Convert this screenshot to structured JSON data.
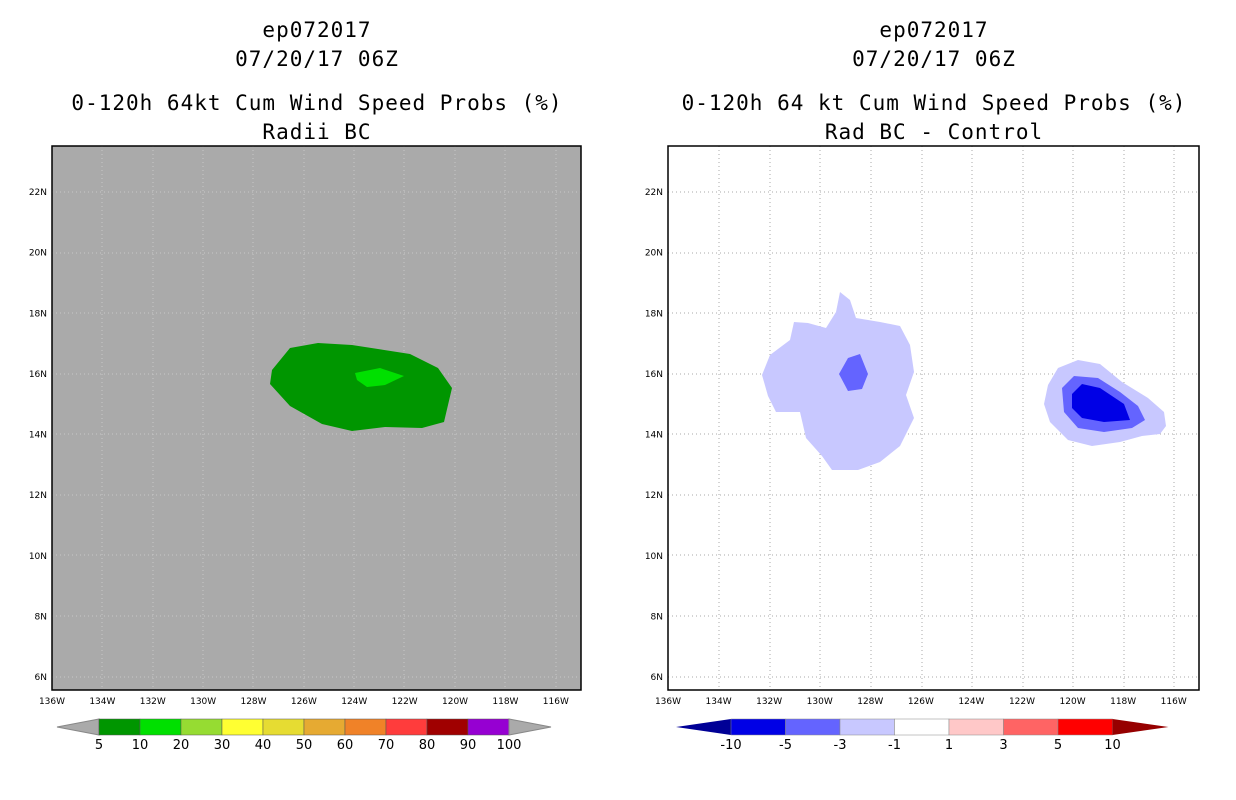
{
  "left": {
    "storm_id": "ep072017",
    "datetime": "07/20/17 06Z",
    "product": "0-120h 64kt Cum Wind Speed Probs (%)",
    "subtitle": "Radii BC",
    "legend_labels": [
      "5",
      "10",
      "20",
      "30",
      "40",
      "50",
      "60",
      "70",
      "80",
      "90",
      "100"
    ],
    "legend_colors": [
      "#009600",
      "#00e000",
      "#96dc32",
      "#ffff32",
      "#e6dc32",
      "#e6aa32",
      "#f08228",
      "#ff3c3c",
      "#a00000",
      "#9600d2"
    ],
    "background_color": "#aaaaaa"
  },
  "right": {
    "storm_id": "ep072017",
    "datetime": "07/20/17 06Z",
    "product": "0-120h 64 kt Cum Wind Speed Probs (%)",
    "subtitle": "Rad BC - Control",
    "legend_labels": [
      "-10",
      "-5",
      "-3",
      "-1",
      "1",
      "3",
      "5",
      "10"
    ],
    "legend_colors": [
      "#0000e6",
      "#6464ff",
      "#c8c8ff",
      "#ffffff",
      "#ffc8c8",
      "#ff6464",
      "#ff0000"
    ],
    "legend_low_color": "#000096",
    "legend_high_color": "#960000"
  },
  "axes": {
    "lon_labels": [
      "136W",
      "134W",
      "132W",
      "130W",
      "128W",
      "126W",
      "124W",
      "122W",
      "120W",
      "118W",
      "116W"
    ],
    "lat_labels": [
      "22N",
      "20N",
      "18N",
      "16N",
      "14N",
      "12N",
      "10N",
      "8N",
      "6N"
    ]
  }
}
